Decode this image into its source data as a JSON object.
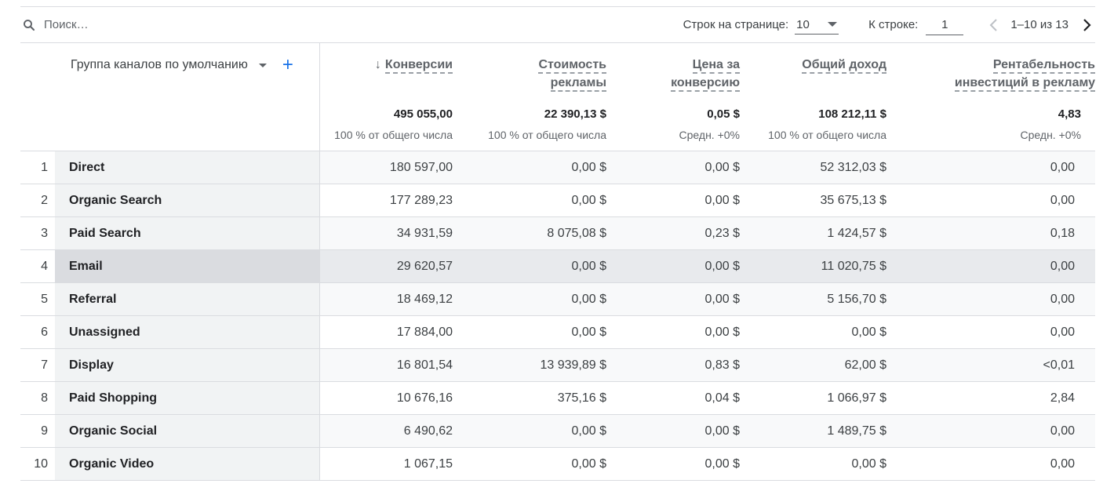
{
  "toolbar": {
    "search_placeholder": "Поиск…",
    "rows_per_page_label": "Строк на странице:",
    "rows_per_page_value": "10",
    "goto_row_label": "К строке:",
    "goto_row_value": "1",
    "page_info": "1–10 из 13"
  },
  "table": {
    "dimension_header": "Группа каналов по умолчанию",
    "columns": [
      {
        "label_line1": "Конверсии",
        "label_line2": "",
        "total": "495 055,00",
        "sub": "100 % от общего числа",
        "sorted": true
      },
      {
        "label_line1": "Стоимость",
        "label_line2": "рекламы",
        "total": "22 390,13 $",
        "sub": "100 % от общего числа",
        "sorted": false
      },
      {
        "label_line1": "Цена за",
        "label_line2": "конверсию",
        "total": "0,05 $",
        "sub": "Средн. +0%",
        "sorted": false
      },
      {
        "label_line1": "Общий доход",
        "label_line2": "",
        "total": "108 212,11 $",
        "sub": "100 % от общего числа",
        "sorted": false
      },
      {
        "label_line1": "Рентабельность",
        "label_line2": "инвестиций в рекламу",
        "total": "4,83",
        "sub": "Средн. +0%",
        "sorted": false
      }
    ],
    "rows": [
      {
        "n": "1",
        "name": "Direct",
        "c1": "180 597,00",
        "c2": "0,00 $",
        "c3": "0,00 $",
        "c4": "52 312,03 $",
        "c5": "0,00"
      },
      {
        "n": "2",
        "name": "Organic Search",
        "c1": "177 289,23",
        "c2": "0,00 $",
        "c3": "0,00 $",
        "c4": "35 675,13 $",
        "c5": "0,00"
      },
      {
        "n": "3",
        "name": "Paid Search",
        "c1": "34 931,59",
        "c2": "8 075,08 $",
        "c3": "0,23 $",
        "c4": "1 424,57 $",
        "c5": "0,18"
      },
      {
        "n": "4",
        "name": "Email",
        "c1": "29 620,57",
        "c2": "0,00 $",
        "c3": "0,00 $",
        "c4": "11 020,75 $",
        "c5": "0,00"
      },
      {
        "n": "5",
        "name": "Referral",
        "c1": "18 469,12",
        "c2": "0,00 $",
        "c3": "0,00 $",
        "c4": "5 156,70 $",
        "c5": "0,00"
      },
      {
        "n": "6",
        "name": "Unassigned",
        "c1": "17 884,00",
        "c2": "0,00 $",
        "c3": "0,00 $",
        "c4": "0,00 $",
        "c5": "0,00"
      },
      {
        "n": "7",
        "name": "Display",
        "c1": "16 801,54",
        "c2": "13 939,89 $",
        "c3": "0,83 $",
        "c4": "62,00 $",
        "c5": "<0,01"
      },
      {
        "n": "8",
        "name": "Paid Shopping",
        "c1": "10 676,16",
        "c2": "375,16 $",
        "c3": "0,04 $",
        "c4": "1 066,97 $",
        "c5": "2,84"
      },
      {
        "n": "9",
        "name": "Organic Social",
        "c1": "6 490,62",
        "c2": "0,00 $",
        "c3": "0,00 $",
        "c4": "1 489,75 $",
        "c5": "0,00"
      },
      {
        "n": "10",
        "name": "Organic Video",
        "c1": "1 067,15",
        "c2": "0,00 $",
        "c3": "0,00 $",
        "c4": "0,00 $",
        "c5": "0,00"
      }
    ]
  },
  "colors": {
    "accent": "#1a73e8",
    "highlight_row": "#e8eaed"
  }
}
